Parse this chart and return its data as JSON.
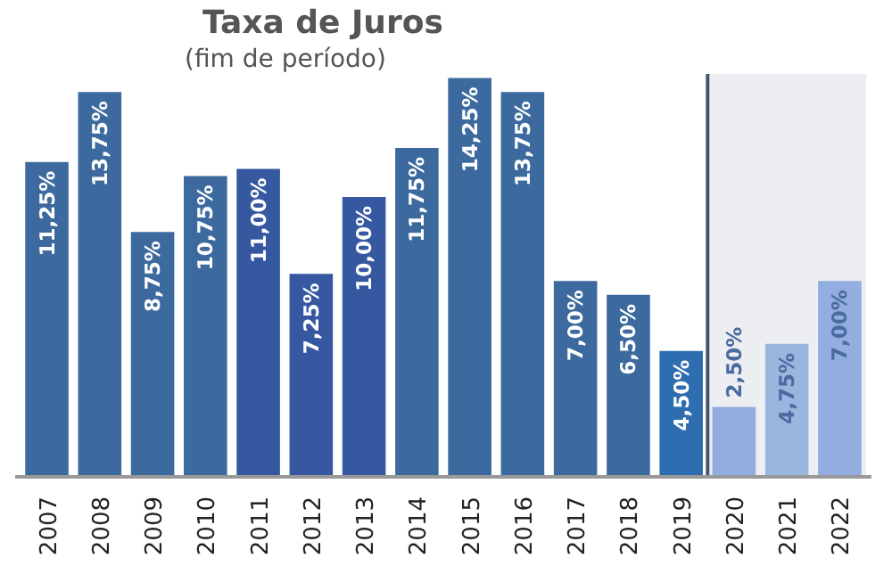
{
  "chart_data": {
    "type": "bar",
    "title": "Taxa de Juros",
    "subtitle": "(fim de período)",
    "categories": [
      "2007",
      "2008",
      "2009",
      "2010",
      "2011",
      "2012",
      "2013",
      "2014",
      "2015",
      "2016",
      "2017",
      "2018",
      "2019",
      "2020",
      "2021",
      "2022"
    ],
    "values": [
      11.25,
      13.75,
      8.75,
      10.75,
      11.0,
      7.25,
      10.0,
      11.75,
      14.25,
      13.75,
      7.0,
      6.5,
      4.5,
      2.5,
      4.75,
      7.0
    ],
    "value_labels": [
      "11,25%",
      "13,75%",
      "8,75%",
      "10,75%",
      "11,00%",
      "7,25%",
      "10,00%",
      "11,75%",
      "14,25%",
      "13,75%",
      "7,00%",
      "6,50%",
      "4,50%",
      "2,50%",
      "4,75%",
      "7,00%"
    ],
    "colors": [
      "#3d6a9e",
      "#3d6a9e",
      "#3d6a9e",
      "#3d6a9e",
      "#3558a0",
      "#3558a0",
      "#3558a0",
      "#3d6a9e",
      "#3d6a9e",
      "#3d6a9e",
      "#3d6a9e",
      "#3d6a9e",
      "#2e6daf",
      "#93acdf",
      "#9ab6df",
      "#92addf"
    ],
    "bands": [
      {
        "axis": "x",
        "from": "2020",
        "to": "2022",
        "color": "#eceef2"
      }
    ],
    "grid": false
  }
}
